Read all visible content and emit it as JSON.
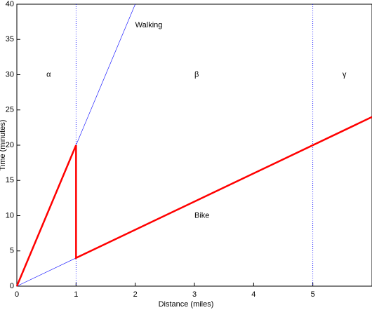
{
  "chart_data": {
    "type": "line",
    "xlabel": "Distance (miles)",
    "ylabel": "Time (minutes)",
    "xlim": [
      0,
      6
    ],
    "ylim": [
      0,
      40
    ],
    "xticks": [
      0,
      1,
      2,
      3,
      4,
      5
    ],
    "yticks": [
      0,
      5,
      10,
      15,
      20,
      25,
      30,
      35,
      40
    ],
    "series": [
      {
        "color": "#0000ff",
        "width": 0.6,
        "x": [
          0,
          2
        ],
        "values": [
          0,
          40
        ]
      },
      {
        "color": "#0000ff",
        "width": 0.6,
        "x": [
          0,
          1
        ],
        "values": [
          0,
          4
        ]
      },
      {
        "color": "#ff0000",
        "width": 2.5,
        "x": [
          0,
          1,
          1,
          6
        ],
        "values": [
          0,
          20,
          4,
          24
        ]
      }
    ],
    "vlines": [
      1,
      5
    ],
    "vline_color": "#0000ff",
    "annotations": [
      {
        "text": "Walking",
        "x": 2,
        "y": 37
      },
      {
        "text": "Bike",
        "x": 3,
        "y": 10
      },
      {
        "text": "α",
        "x": 0.5,
        "y": 30
      },
      {
        "text": "β",
        "x": 3,
        "y": 30
      },
      {
        "text": "γ",
        "x": 5.5,
        "y": 30
      }
    ]
  }
}
